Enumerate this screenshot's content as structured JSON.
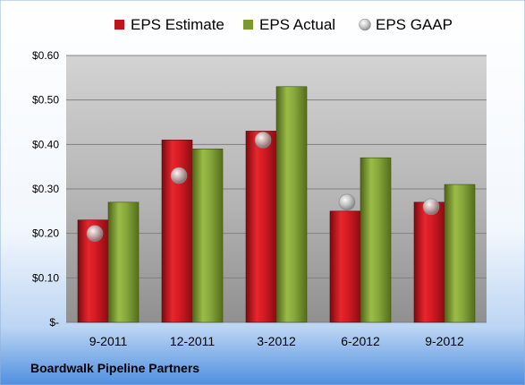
{
  "chart_data": {
    "type": "bar",
    "categories": [
      "9-2011",
      "12-2011",
      "3-2012",
      "6-2012",
      "9-2012"
    ],
    "series": [
      {
        "name": "EPS Estimate",
        "kind": "bar",
        "color": "#c0141c",
        "values": [
          0.23,
          0.41,
          0.43,
          0.25,
          0.27
        ]
      },
      {
        "name": "EPS Actual",
        "kind": "bar",
        "color": "#7a9a2e",
        "values": [
          0.27,
          0.39,
          0.53,
          0.37,
          0.31
        ]
      },
      {
        "name": "EPS GAAP",
        "kind": "marker",
        "color": "#b8b8b8",
        "values": [
          0.2,
          0.33,
          0.41,
          0.27,
          0.26
        ]
      }
    ],
    "yticks": [
      0,
      0.1,
      0.2,
      0.3,
      0.4,
      0.5,
      0.6
    ],
    "ytick_labels": [
      "$-",
      "$0.10",
      "$0.20",
      "$0.30",
      "$0.40",
      "$0.50",
      "$0.60"
    ],
    "ylim": [
      0,
      0.6
    ],
    "grid": true,
    "legend_position": "top",
    "footer": "Boardwalk Pipeline Partners"
  }
}
